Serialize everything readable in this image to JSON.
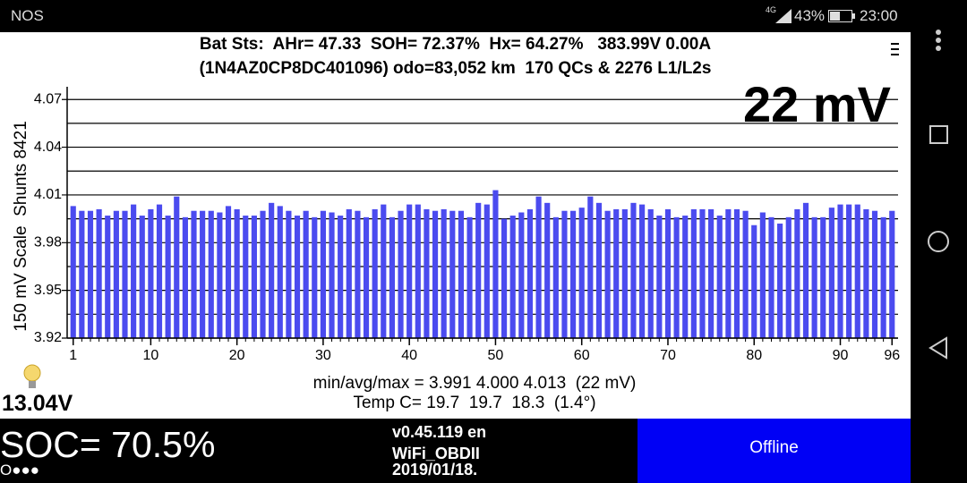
{
  "status_bar": {
    "carrier": "NOS",
    "network": "4G",
    "battery": "43%",
    "time": "23:00"
  },
  "header": {
    "line1": "Bat Sts:  AHr= 47.33  SOH= 72.37%  Hx= 64.27%   383.99V 0.00A",
    "line2": "(1N4AZ0CP8DC401096) odo=83,052 km  170 QCs & 2276 L1/L2s"
  },
  "cell_delta": "22 mV",
  "chart_data": {
    "type": "bar",
    "y_axis_label": "150 mV Scale  Shunts 8421",
    "color": "#4b4bef",
    "x": [
      1,
      2,
      3,
      4,
      5,
      6,
      7,
      8,
      9,
      10,
      11,
      12,
      13,
      14,
      15,
      16,
      17,
      18,
      19,
      20,
      21,
      22,
      23,
      24,
      25,
      26,
      27,
      28,
      29,
      30,
      31,
      32,
      33,
      34,
      35,
      36,
      37,
      38,
      39,
      40,
      41,
      42,
      43,
      44,
      45,
      46,
      47,
      48,
      49,
      50,
      51,
      52,
      53,
      54,
      55,
      56,
      57,
      58,
      59,
      60,
      61,
      62,
      63,
      64,
      65,
      66,
      67,
      68,
      69,
      70,
      71,
      72,
      73,
      74,
      75,
      76,
      77,
      78,
      79,
      80,
      81,
      82,
      83,
      84,
      85,
      86,
      87,
      88,
      89,
      90,
      91,
      92,
      93,
      94,
      95,
      96
    ],
    "values": [
      4.003,
      4.0,
      4.0,
      4.001,
      3.997,
      4.0,
      4.0,
      4.004,
      3.997,
      4.001,
      4.004,
      3.997,
      4.009,
      3.996,
      4.0,
      4.0,
      4.0,
      3.999,
      4.003,
      4.001,
      3.997,
      3.997,
      4.0,
      4.005,
      4.003,
      4.0,
      3.997,
      4.0,
      3.996,
      4.0,
      3.999,
      3.997,
      4.001,
      4.0,
      3.996,
      4.001,
      4.004,
      3.996,
      4.0,
      4.004,
      4.004,
      4.001,
      4.0,
      4.001,
      4.0,
      4.0,
      3.996,
      4.005,
      4.004,
      4.013,
      3.995,
      3.997,
      3.999,
      4.001,
      4.009,
      4.005,
      3.996,
      4.0,
      4.0,
      4.002,
      4.009,
      4.005,
      4.0,
      4.001,
      4.001,
      4.005,
      4.004,
      4.001,
      3.997,
      4.001,
      3.996,
      3.997,
      4.001,
      4.001,
      4.001,
      3.997,
      4.001,
      4.001,
      4.0,
      3.991,
      3.999,
      3.996,
      3.992,
      3.996,
      4.001,
      4.005,
      3.996,
      3.996,
      4.002,
      4.004,
      4.004,
      4.004,
      4.001,
      4.0,
      3.996,
      4.0
    ],
    "xlim": [
      0.3,
      96.7
    ],
    "ylim": [
      3.92,
      4.078
    ],
    "xticks": [
      1,
      10,
      20,
      30,
      40,
      50,
      60,
      70,
      80,
      90,
      96
    ],
    "yticks": [
      3.92,
      3.95,
      3.98,
      4.01,
      4.04,
      4.07
    ],
    "minor_gridlines": [
      3.935,
      3.965,
      3.995,
      4.025,
      4.055
    ],
    "grid": true
  },
  "stats": {
    "min_avg_max": "min/avg/max = 3.991 4.000 4.013  (22 mV)",
    "temperature": "Temp C= 19.7  19.7  18.3  (1.4°)"
  },
  "aux_voltage": "13.04V",
  "soc": "SOC= 70.5%",
  "status_dots": "O●●●",
  "version": [
    "v0.45.119 en",
    "WiFi_OBDII",
    "2019/01/18."
  ],
  "button": "Offline"
}
